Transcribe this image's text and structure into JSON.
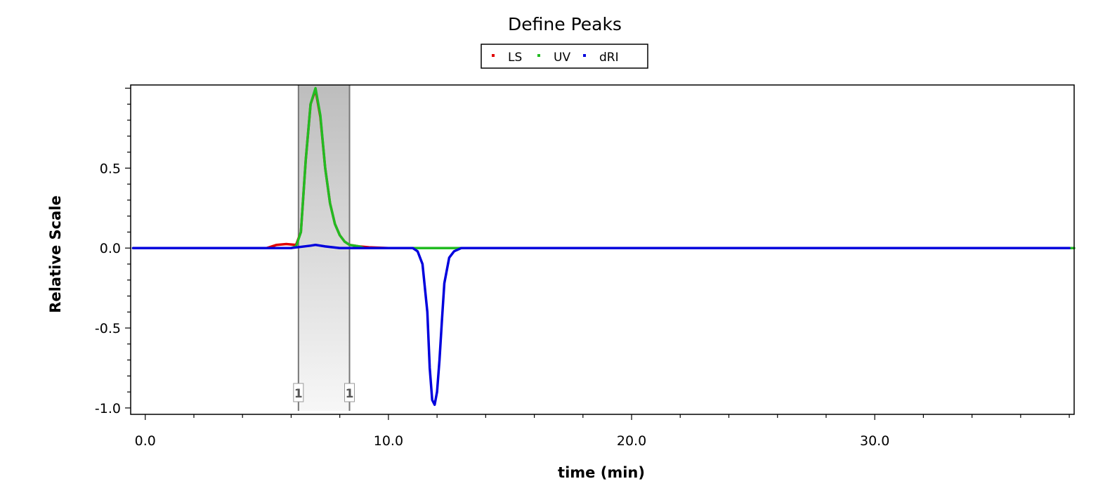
{
  "chart_data": {
    "type": "line",
    "title": "Define Peaks",
    "xlabel": "time (min)",
    "ylabel": "Relative Scale",
    "xlim": [
      -0.6,
      38.2
    ],
    "ylim": [
      -1.04,
      1.02
    ],
    "x_ticks": [
      0,
      10,
      20,
      30
    ],
    "x_tick_labels": [
      "0.0",
      "10.0",
      "20.0",
      "30.0"
    ],
    "y_ticks": [
      -1,
      -0.5,
      0,
      0.5
    ],
    "y_tick_labels": [
      "-1.0",
      "-0.5",
      "0.0",
      "0.5"
    ],
    "legend": {
      "placement": "top-center"
    },
    "peak_region": {
      "start": 6.3,
      "end": 8.4,
      "start_label": "1",
      "end_label": "1"
    },
    "series": [
      {
        "name": "LS",
        "color": "#e00000",
        "x": [
          -0.5,
          5.0,
          5.4,
          5.8,
          6.2,
          6.4,
          6.6,
          6.8,
          7.0,
          7.2,
          7.4,
          7.6,
          7.8,
          8.0,
          8.2,
          8.4,
          8.8,
          9.2,
          10.0,
          38.0
        ],
        "y": [
          0,
          0,
          0.02,
          0.025,
          0.02,
          0.1,
          0.55,
          0.9,
          0.99,
          0.82,
          0.5,
          0.28,
          0.15,
          0.08,
          0.04,
          0.02,
          0.01,
          0.005,
          0,
          0
        ]
      },
      {
        "name": "UV",
        "color": "#22bb22",
        "x": [
          -0.5,
          6.0,
          6.2,
          6.4,
          6.6,
          6.8,
          7.0,
          7.2,
          7.4,
          7.6,
          7.8,
          8.0,
          8.2,
          8.4,
          8.8,
          9.0,
          11.0,
          12.8,
          13.0,
          38.2
        ],
        "y": [
          0,
          0,
          0.01,
          0.1,
          0.55,
          0.9,
          1.0,
          0.83,
          0.5,
          0.28,
          0.15,
          0.08,
          0.04,
          0.02,
          0.01,
          0,
          0,
          0,
          0,
          0
        ]
      },
      {
        "name": "dRI",
        "color": "#0000dd",
        "x": [
          -0.5,
          6.0,
          6.8,
          7.0,
          7.4,
          8.0,
          11.0,
          11.2,
          11.4,
          11.6,
          11.7,
          11.8,
          11.9,
          12.0,
          12.1,
          12.2,
          12.3,
          12.5,
          12.7,
          13.0,
          38.0
        ],
        "y": [
          0,
          0,
          0.015,
          0.02,
          0.01,
          0,
          0,
          -0.02,
          -0.1,
          -0.4,
          -0.75,
          -0.95,
          -0.98,
          -0.9,
          -0.7,
          -0.45,
          -0.22,
          -0.06,
          -0.02,
          0,
          0
        ]
      }
    ]
  }
}
